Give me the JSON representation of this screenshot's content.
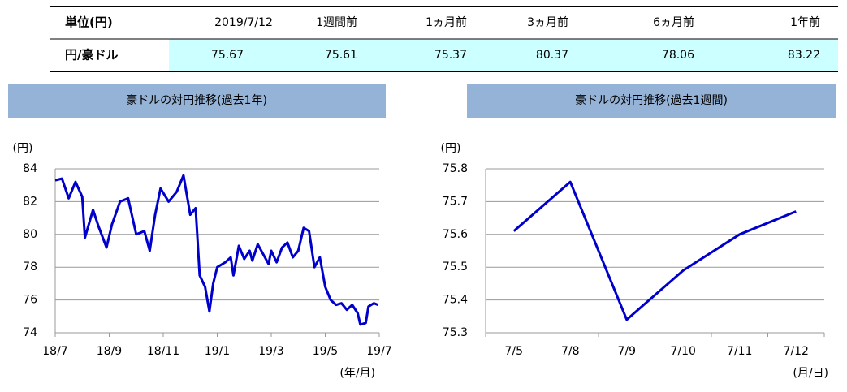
{
  "table": {
    "header": [
      "単位(円)",
      "2019/7/12",
      "1週間前",
      "1ヵ月前",
      "3ヵ月前",
      "6ヵ月前",
      "1年前"
    ],
    "rows": [
      [
        "円/豪ドル",
        "75.67",
        "75.61",
        "75.37",
        "80.37",
        "78.06",
        "83.22"
      ]
    ]
  },
  "chart_data": [
    {
      "type": "line",
      "title": "豪ドルの対円推移(過去1年)",
      "y_label": "(円)",
      "x_label": "(年/月)",
      "color": "#0000cc",
      "grid": true,
      "xlim": [
        0,
        12
      ],
      "xticks": [
        {
          "value": 0,
          "label": "18/7"
        },
        {
          "value": 2,
          "label": "18/9"
        },
        {
          "value": 4,
          "label": "18/11"
        },
        {
          "value": 6,
          "label": "19/1"
        },
        {
          "value": 8,
          "label": "19/3"
        },
        {
          "value": 10,
          "label": "19/5"
        },
        {
          "value": 12,
          "label": "19/7"
        }
      ],
      "ylim": [
        74,
        84
      ],
      "yticks": [
        74,
        76,
        78,
        80,
        82,
        84
      ],
      "x": [
        0,
        0.25,
        0.5,
        0.75,
        1.0,
        1.1,
        1.4,
        1.6,
        1.9,
        2.1,
        2.4,
        2.7,
        3.0,
        3.3,
        3.5,
        3.7,
        3.9,
        4.2,
        4.5,
        4.75,
        5.0,
        5.2,
        5.35,
        5.55,
        5.71,
        5.85,
        6.0,
        6.3,
        6.5,
        6.6,
        6.8,
        7.0,
        7.2,
        7.3,
        7.5,
        7.7,
        7.9,
        8.0,
        8.2,
        8.4,
        8.6,
        8.8,
        9.0,
        9.2,
        9.4,
        9.6,
        9.8,
        10.0,
        10.2,
        10.4,
        10.6,
        10.8,
        11.0,
        11.2,
        11.3,
        11.5,
        11.6,
        11.8,
        11.95
      ],
      "values": [
        83.3,
        83.4,
        82.2,
        83.2,
        82.3,
        79.8,
        81.5,
        80.5,
        79.2,
        80.6,
        82.0,
        82.2,
        80.0,
        80.2,
        79.0,
        81.2,
        82.8,
        82.0,
        82.6,
        83.6,
        81.2,
        81.6,
        77.5,
        76.8,
        75.3,
        77.0,
        78.0,
        78.3,
        78.6,
        77.5,
        79.3,
        78.5,
        79.0,
        78.4,
        79.4,
        78.8,
        78.2,
        79.0,
        78.3,
        79.2,
        79.5,
        78.6,
        79.0,
        80.4,
        80.2,
        78.0,
        78.6,
        76.8,
        76.0,
        75.7,
        75.8,
        75.4,
        75.7,
        75.2,
        74.5,
        74.6,
        75.6,
        75.8,
        75.7
      ]
    },
    {
      "type": "line",
      "title": "豪ドルの対円推移(過去1週間)",
      "y_label": "(円)",
      "x_label": "(月/日)",
      "color": "#0000cc",
      "grid": true,
      "categories": [
        "7/5",
        "7/8",
        "7/9",
        "7/10",
        "7/11",
        "7/12"
      ],
      "values": [
        75.61,
        75.76,
        75.34,
        75.49,
        75.6,
        75.67
      ],
      "ylim": [
        75.3,
        75.8
      ],
      "yticks": [
        75.3,
        75.4,
        75.5,
        75.6,
        75.7,
        75.8
      ]
    }
  ]
}
